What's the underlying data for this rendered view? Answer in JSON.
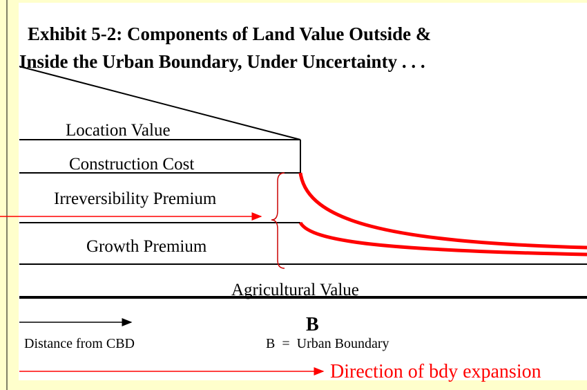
{
  "header": {
    "title_lines": [
      "Exhibit 5-2: Components of Land Value Outside &",
      "Inside the Urban Boundary, Under Uncertainty . . ."
    ]
  },
  "layers": [
    "Location Value",
    "Construction Cost",
    "Irreversibility Premium",
    "Growth Premium",
    "Agricultural Value"
  ],
  "boundary": {
    "symbol": "B",
    "legend": "B  =  Urban Boundary"
  },
  "axis_label": "Distance from CBD",
  "expansion_label": "Direction of bdy expansion"
}
